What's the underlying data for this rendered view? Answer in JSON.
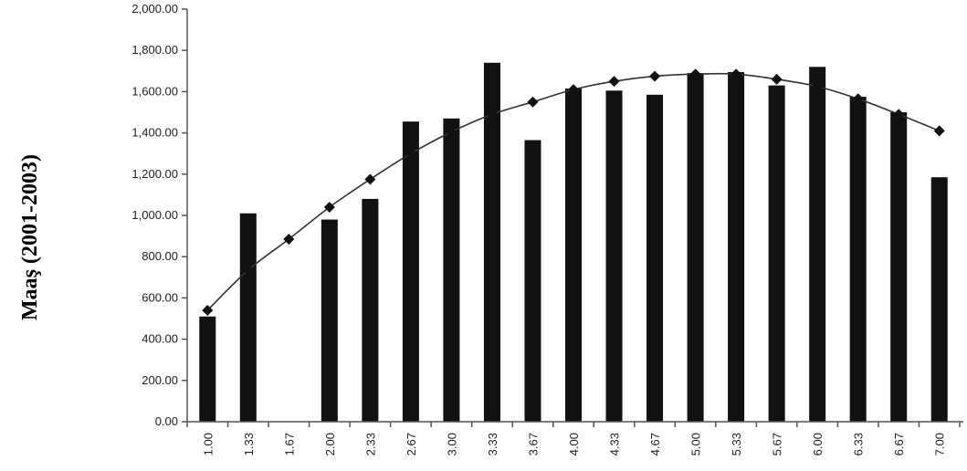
{
  "chart_data": {
    "type": "bar",
    "ylabel": "Maaş (2001-2003)",
    "xlabel": "",
    "ylim": [
      0,
      2000
    ],
    "yticks": [
      "0.00",
      "200.00",
      "400.00",
      "600.00",
      "800.00",
      "1,000.00",
      "1,200.00",
      "1,400.00",
      "1,600.00",
      "1,800.00",
      "2,000.00"
    ],
    "categories": [
      "1.00",
      "1.33",
      "1.67",
      "2.00",
      "2.33",
      "2.67",
      "3.00",
      "3.33",
      "3.67",
      "4.00",
      "4.33",
      "4.67",
      "5.00",
      "5.33",
      "5.67",
      "6.00",
      "6.33",
      "6.67",
      "7.00"
    ],
    "series": [
      {
        "type": "bar",
        "values": [
          510,
          1010,
          null,
          980,
          1080,
          1455,
          1470,
          1740,
          1365,
          1615,
          1605,
          1585,
          1690,
          1695,
          1630,
          1720,
          1575,
          1500,
          1185
        ]
      },
      {
        "type": "line",
        "values": [
          540,
          735,
          885,
          1040,
          1175,
          1300,
          1405,
          1490,
          1550,
          1610,
          1650,
          1675,
          1685,
          1685,
          1660,
          1625,
          1565,
          1490,
          1410
        ]
      }
    ],
    "grid": false,
    "colors": {
      "bar": "#111111",
      "line": "#333333",
      "axis": "#555555"
    }
  }
}
